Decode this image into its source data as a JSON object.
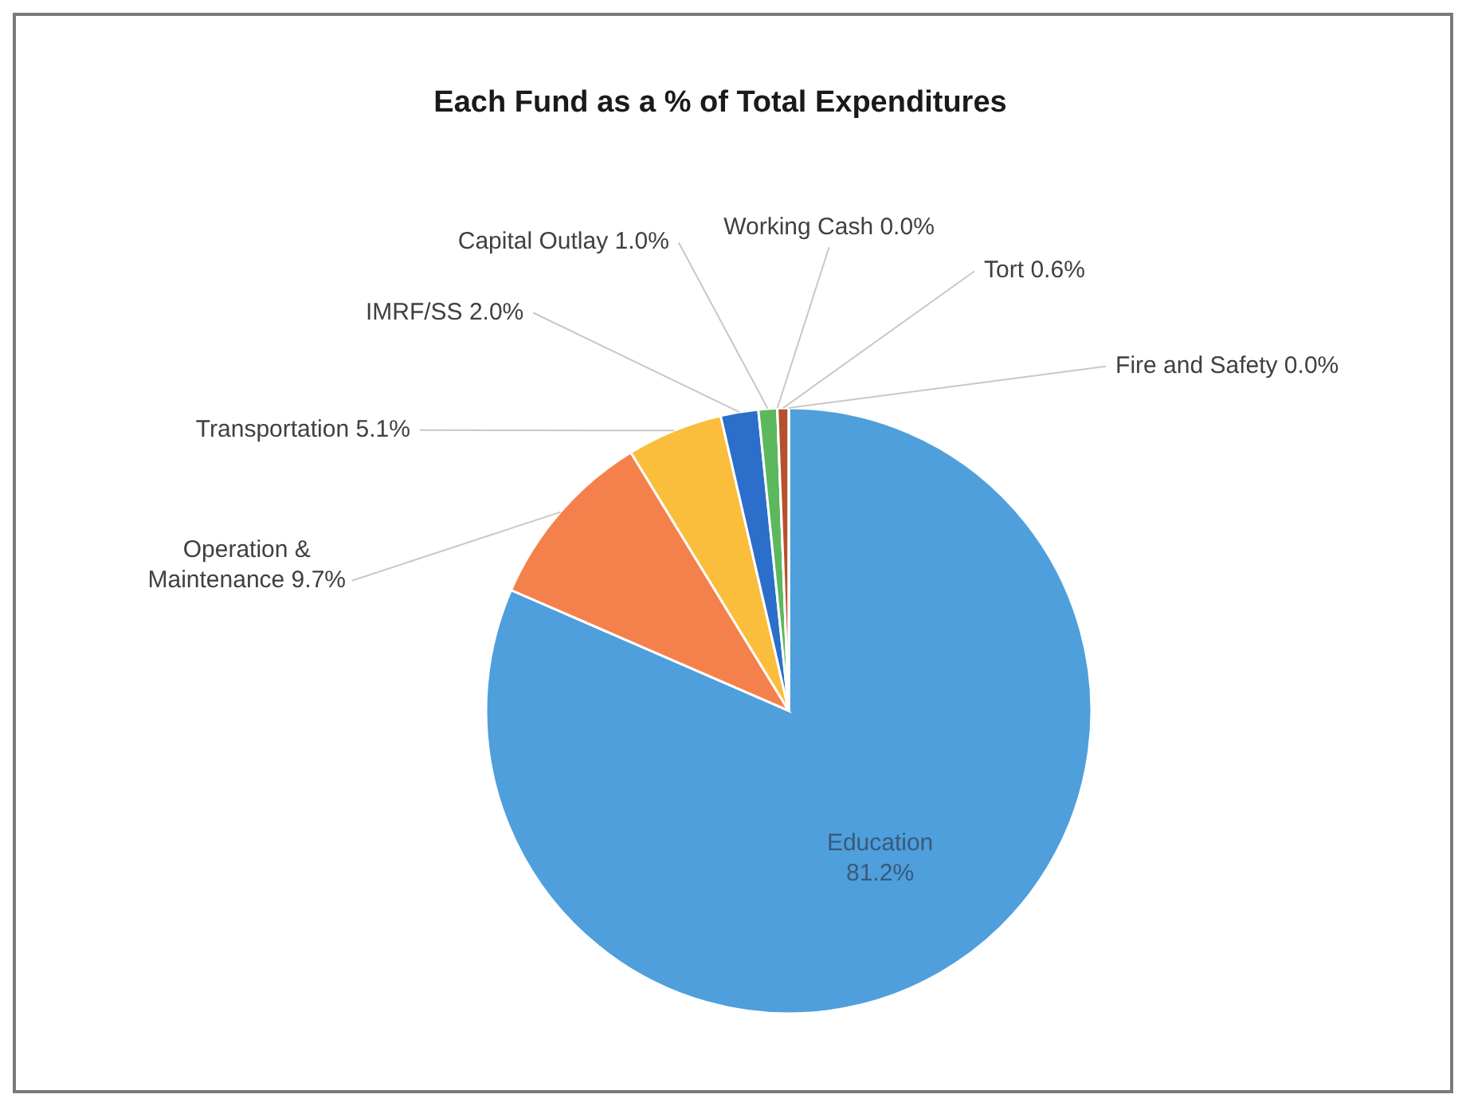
{
  "chart_data": {
    "type": "pie",
    "title": "Each Fund as a % of Total Expenditures",
    "categories": [
      "Education",
      "Operation & Maintenance",
      "Transportation",
      "IMRF/SS",
      "Capital Outlay",
      "Working Cash",
      "Tort",
      "Fire and Safety"
    ],
    "values": [
      81.2,
      9.7,
      5.1,
      2.0,
      1.0,
      0.0,
      0.6,
      0.0
    ],
    "value_labels": [
      "81.2%",
      "9.7%",
      "5.1%",
      "2.0%",
      "1.0%",
      "0.0%",
      "0.6%",
      "0.0%"
    ],
    "colors": [
      "#4e9fdc",
      "#f4814c",
      "#fbbd3c",
      "#2b6fca",
      "#5cb85c",
      "#9a9a9a",
      "#b4512f",
      "#d9d9d9"
    ]
  }
}
